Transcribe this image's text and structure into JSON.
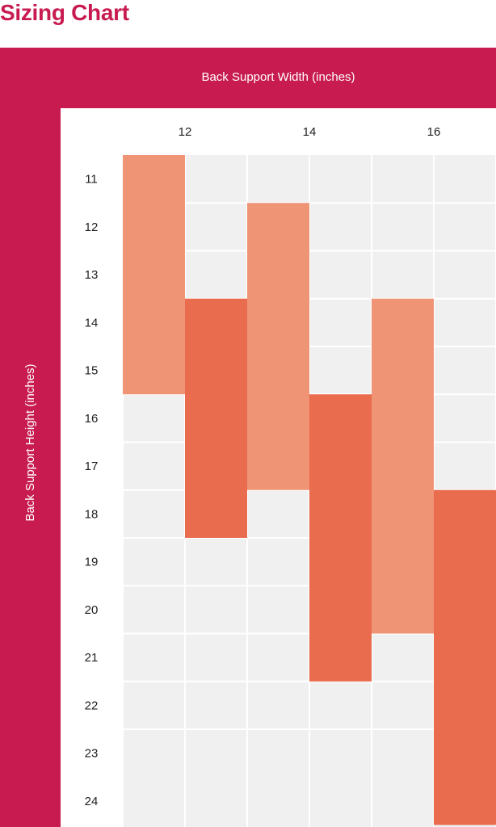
{
  "chart_data": {
    "type": "bar",
    "title": "Sizing Chart",
    "xlabel": "Back Support Width (inches)",
    "ylabel": "Back Support Height (inches)",
    "x_ticks": [
      "12",
      "14",
      "16"
    ],
    "y_ticks": [
      "11",
      "12",
      "13",
      "14",
      "15",
      "16",
      "17",
      "18",
      "19",
      "20",
      "21",
      "22",
      "23",
      "24"
    ],
    "ranges": [
      {
        "width": "12",
        "height_min": 11,
        "height_max": 15,
        "color": "#f09476"
      },
      {
        "width": "13",
        "height_min": 14,
        "height_max": 18,
        "color": "#e96c4f"
      },
      {
        "width": "14",
        "height_min": 12,
        "height_max": 17,
        "color": "#f09476"
      },
      {
        "width": "15",
        "height_min": 16,
        "height_max": 21,
        "color": "#e96c4f"
      },
      {
        "width": "16",
        "height_min": 14,
        "height_max": 20,
        "color": "#f09476"
      },
      {
        "width": "17",
        "height_min": 18,
        "height_max": 24,
        "color": "#e96c4f"
      }
    ],
    "grid": true,
    "colors": {
      "brand": "#c81c51",
      "plot_background": "#f0f0f0",
      "light_range": "#f09476",
      "dark_range": "#e96c4f"
    }
  }
}
